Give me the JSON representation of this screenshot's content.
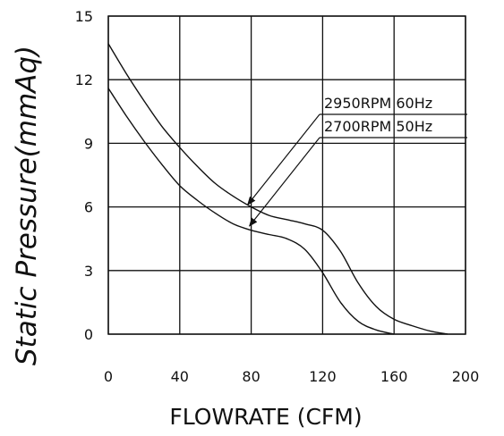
{
  "chart_data": {
    "type": "line",
    "xlabel": "FLOWRATE (CFM)",
    "ylabel": "Static Pressure(mmAq)",
    "xlim": [
      0,
      200
    ],
    "ylim": [
      0,
      15
    ],
    "xticks": [
      "0",
      "40",
      "80",
      "120",
      "160",
      "200"
    ],
    "yticks": [
      "0",
      "3",
      "6",
      "9",
      "12",
      "15"
    ],
    "grid": true,
    "legend_position": "top-right",
    "series": [
      {
        "name": "2950RPM  60Hz",
        "x": [
          0,
          10,
          20,
          30,
          40,
          50,
          60,
          70,
          80,
          90,
          100,
          110,
          120,
          130,
          140,
          150,
          160,
          170,
          180,
          190
        ],
        "y": [
          13.7,
          12.3,
          11.0,
          9.8,
          8.8,
          7.9,
          7.1,
          6.5,
          6.0,
          5.6,
          5.4,
          5.2,
          4.9,
          3.9,
          2.4,
          1.3,
          0.7,
          0.4,
          0.15,
          0
        ]
      },
      {
        "name": "2700RPM  50Hz",
        "x": [
          0,
          10,
          20,
          30,
          40,
          50,
          60,
          70,
          80,
          90,
          100,
          110,
          120,
          130,
          140,
          150,
          160
        ],
        "y": [
          11.6,
          10.3,
          9.1,
          8.0,
          7.0,
          6.3,
          5.7,
          5.2,
          4.9,
          4.7,
          4.5,
          4.0,
          2.9,
          1.5,
          0.6,
          0.2,
          0
        ]
      }
    ],
    "annotations": [
      {
        "text": "2950RPM  60Hz",
        "arrow_to": [
          78,
          6.1
        ]
      },
      {
        "text": "2700RPM  50Hz",
        "arrow_to": [
          79,
          5.1
        ]
      }
    ]
  }
}
